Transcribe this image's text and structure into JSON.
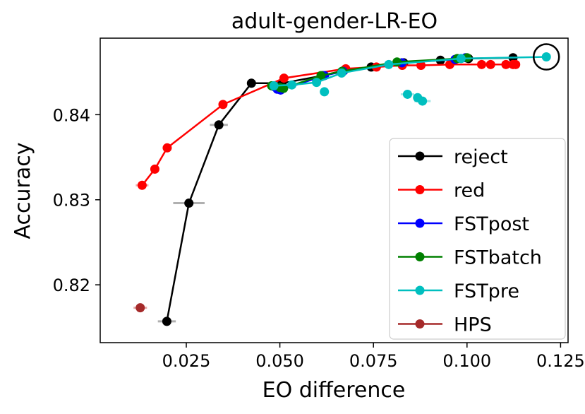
{
  "chart_data": {
    "type": "line",
    "title": "adult-gender-LR-EO",
    "xlabel": "EO difference",
    "ylabel": "Accuracy",
    "xlim": [
      0.002,
      0.127
    ],
    "ylim": [
      0.8132,
      0.849
    ],
    "x_ticks": [
      0.025,
      0.05,
      0.075,
      0.1,
      0.125
    ],
    "x_tick_labels": [
      "0.025",
      "0.050",
      "0.075",
      "0.100",
      "0.125"
    ],
    "y_ticks": [
      0.82,
      0.83,
      0.84
    ],
    "y_tick_labels": [
      "0.82",
      "0.83",
      "0.84"
    ],
    "grid": false,
    "legend_position": "lower right",
    "series": [
      {
        "name": "reject",
        "color": "#000000",
        "error_color": "#b0b0b0",
        "x": [
          0.0198,
          0.0257,
          0.0337,
          0.0424,
          0.0506,
          0.0615,
          0.0671,
          0.0744,
          0.0831,
          0.0929,
          0.1004,
          0.1123
        ],
        "y": [
          0.8157,
          0.8296,
          0.8388,
          0.8437,
          0.8437,
          0.8446,
          0.8452,
          0.8456,
          0.8461,
          0.8464,
          0.8466,
          0.8467
        ],
        "xerr": [
          0.0024,
          0.0042,
          0.0024,
          0.0006,
          0.0006,
          0.0006,
          0.0006,
          0.0006,
          0.0006,
          0.0006,
          0.0006,
          0.0006
        ]
      },
      {
        "name": "red",
        "color": "#ff0000",
        "error_color": "#f4a7a7",
        "x": [
          0.0132,
          0.0166,
          0.0199,
          0.0348,
          0.0511,
          0.0676,
          0.0758,
          0.0827,
          0.0877,
          0.0954,
          0.1039,
          0.1063,
          0.1104,
          0.1123,
          0.113
        ],
        "y": [
          0.8317,
          0.8336,
          0.8361,
          0.8412,
          0.8443,
          0.8454,
          0.8456,
          0.8458,
          0.8458,
          0.8459,
          0.8459,
          0.8459,
          0.8459,
          0.8459,
          0.8459
        ],
        "xerr": [
          0.0017,
          0.0009,
          0.0006,
          0.0006,
          0.0006,
          0.0006,
          0.0006,
          0.0006,
          0.0006,
          0.0006,
          0.0006,
          0.0006,
          0.0006,
          0.0006,
          0.0006
        ]
      },
      {
        "name": "FSTpost",
        "color": "#0000ff",
        "error_color": "#a8a8f5",
        "x": [
          0.0485,
          0.0493,
          0.0502,
          0.0619,
          0.0669,
          0.0826,
          0.0968,
          0.0996
        ],
        "y": [
          0.8433,
          0.843,
          0.8429,
          0.8446,
          0.8451,
          0.8461,
          0.8465,
          0.8467
        ],
        "xerr": [
          0.0006,
          0.0006,
          0.0006,
          0.0006,
          0.0006,
          0.0006,
          0.0006,
          0.0006
        ]
      },
      {
        "name": "FSTbatch",
        "color": "#008000",
        "error_color": "#9ccf9c",
        "x": [
          0.0478,
          0.05,
          0.051,
          0.061,
          0.0666,
          0.0813,
          0.0974,
          0.1
        ],
        "y": [
          0.8434,
          0.8432,
          0.8431,
          0.8446,
          0.8451,
          0.8462,
          0.8466,
          0.8467
        ],
        "xerr": [
          0.0006,
          0.0006,
          0.0006,
          0.0006,
          0.0006,
          0.0006,
          0.0006,
          0.0006
        ]
      },
      {
        "name": "FSTpre",
        "color": "#00bfbf",
        "error_color": "#a3e6e6",
        "x": [
          0.0484,
          0.0532,
          0.0598,
          0.0619,
          0.0665,
          0.0791,
          0.0841,
          0.0868,
          0.0881,
          0.0984,
          0.1212
        ],
        "y": [
          0.8434,
          0.8435,
          0.8438,
          0.8427,
          0.8449,
          0.8459,
          0.8424,
          0.842,
          0.8416,
          0.8466,
          0.8468
        ],
        "xerr": [
          0.0006,
          0.0006,
          0.0006,
          0.0012,
          0.0006,
          0.0006,
          0.0018,
          0.0012,
          0.0022,
          0.0006,
          0.0006
        ],
        "line_indices": [
          0,
          1,
          2,
          4,
          5,
          9,
          10
        ]
      },
      {
        "name": "HPS",
        "color": "#a52a2a",
        "error_color": "#e6a8a8",
        "x": [
          0.0127
        ],
        "y": [
          0.8173
        ],
        "xerr": [
          0.0018
        ],
        "show_line": false
      }
    ],
    "annotations": [
      {
        "type": "circle-highlight",
        "x": 0.1212,
        "y": 0.8468
      }
    ]
  }
}
